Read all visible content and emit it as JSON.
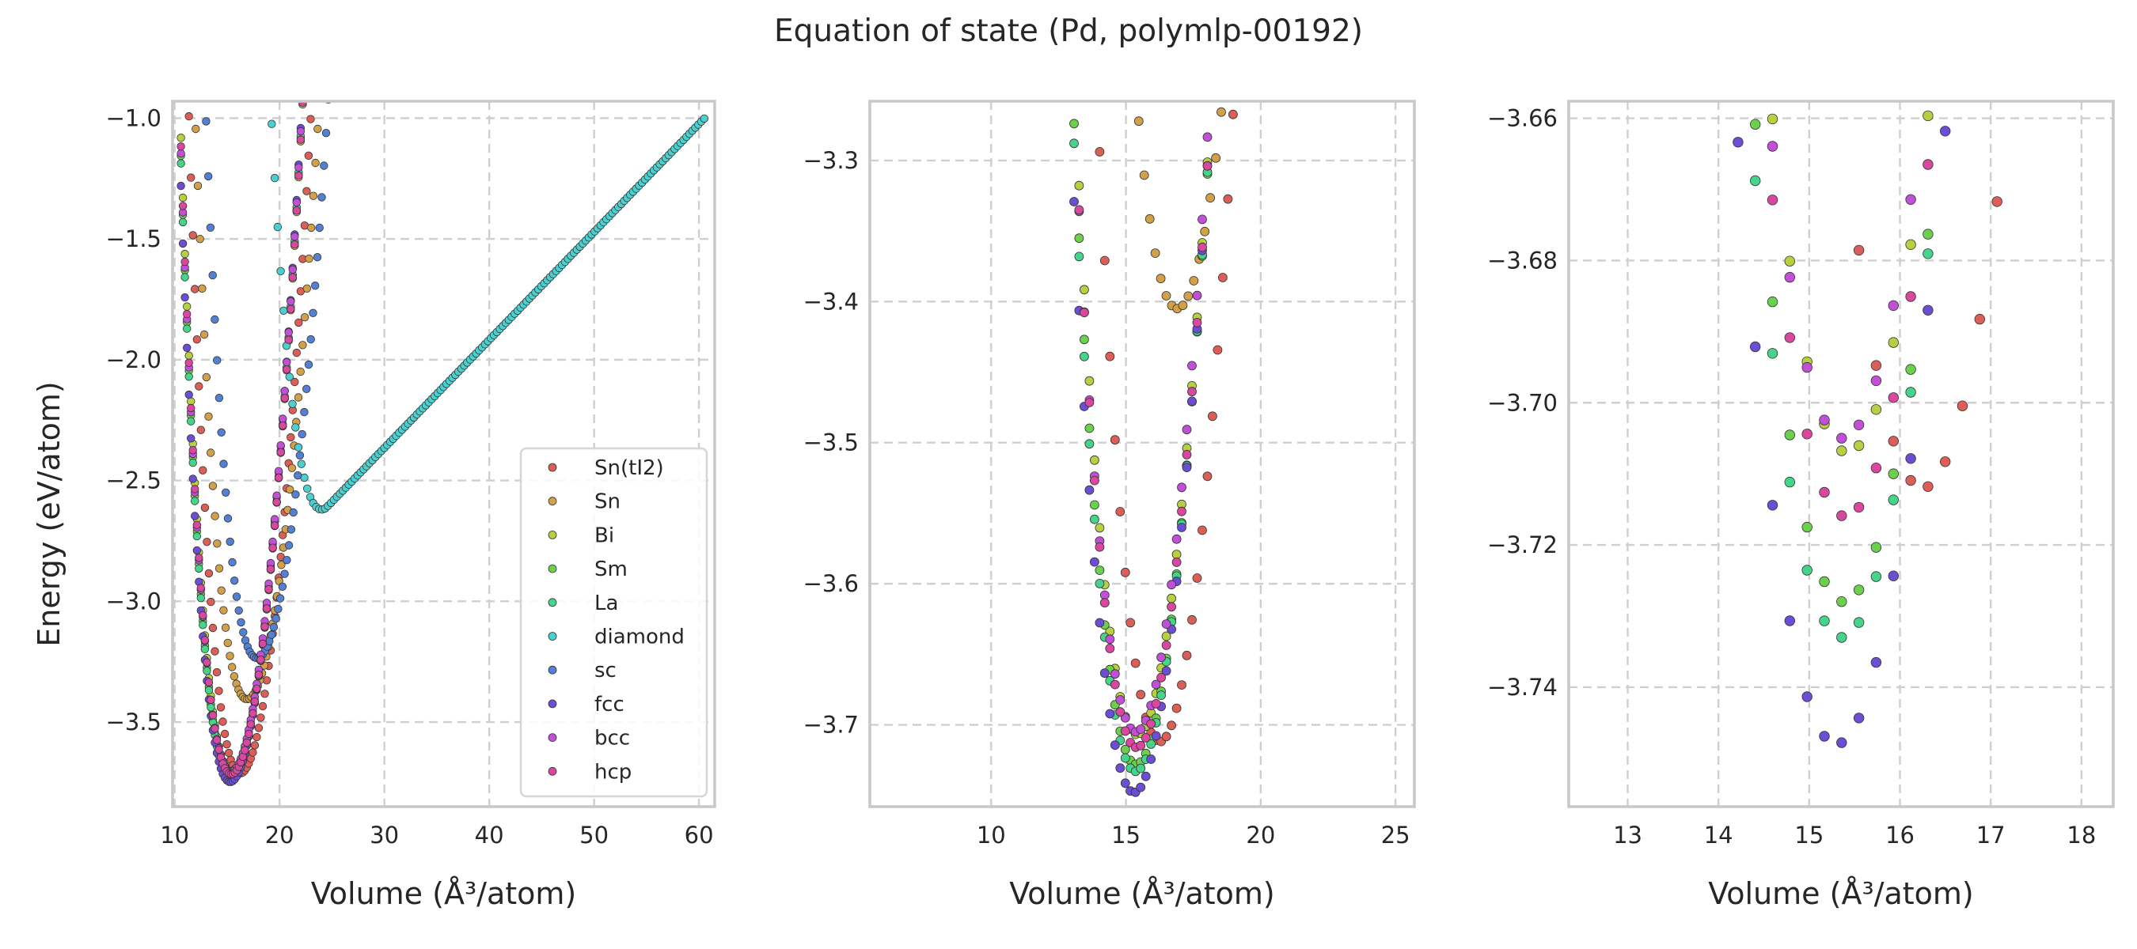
{
  "chart_data": {
    "type": "scatter",
    "title": "Equation of state (Pd, polymlp-00192)",
    "ylabel": "Energy (eV/atom)",
    "xlabel": "Volume (Å³/atom)",
    "legend": {
      "placement": "lower-right",
      "panel": 0
    },
    "series": [
      {
        "name": "Sn(tI2)",
        "color": "#db5f57",
        "v0": 16.25,
        "e0": -3.712,
        "curv": 0.06,
        "vmin": 10.6,
        "vmax": 38.0,
        "n": 145,
        "right_slope": 0.0,
        "flat": false
      },
      {
        "name": "Sn",
        "color": "#d3a04a",
        "v0": 16.9,
        "e0": -3.405,
        "curv": 0.052,
        "vmin": 11.6,
        "vmax": 42.0,
        "n": 150,
        "right_slope": 0.0,
        "flat": false
      },
      {
        "name": "Bi",
        "color": "#b6d041",
        "v0": 15.42,
        "e0": -3.707,
        "curv": 0.06,
        "vmin": 10.6,
        "vmax": 38.0,
        "n": 145,
        "right_slope": 0.0,
        "flat": false
      },
      {
        "name": "Sm",
        "color": "#6bd04b",
        "v0": 15.38,
        "e0": -3.728,
        "curv": 0.06,
        "vmin": 10.6,
        "vmax": 38.0,
        "n": 145,
        "right_slope": 0.0,
        "flat": false
      },
      {
        "name": "La",
        "color": "#44d48a",
        "v0": 15.36,
        "e0": -3.733,
        "curv": 0.06,
        "vmin": 10.6,
        "vmax": 38.0,
        "n": 145,
        "right_slope": 0.0,
        "flat": false
      },
      {
        "name": "diamond",
        "color": "#4ccfcf",
        "v0": 24.0,
        "e0": -2.62,
        "curv": 0.038,
        "vmin": 17.0,
        "vmax": 60.5,
        "n": 155,
        "right_slope": 0.0447,
        "flat": true
      },
      {
        "name": "sc",
        "color": "#5480d3",
        "v0": 17.85,
        "e0": -3.235,
        "curv": 0.05,
        "vmin": 13.0,
        "vmax": 44.0,
        "n": 150,
        "right_slope": 0.0,
        "flat": false
      },
      {
        "name": "fcc",
        "color": "#6b4ed3",
        "v0": 15.3,
        "e0": -3.748,
        "curv": 0.06,
        "vmin": 10.6,
        "vmax": 38.0,
        "n": 145,
        "right_slope": 0.0,
        "flat": false
      },
      {
        "name": "bcc",
        "color": "#c24fd8",
        "v0": 15.37,
        "e0": -3.705,
        "curv": 0.06,
        "vmin": 10.6,
        "vmax": 38.0,
        "n": 145,
        "right_slope": 0.0,
        "flat": false
      },
      {
        "name": "hcp",
        "color": "#d9479e",
        "v0": 15.4,
        "e0": -3.716,
        "curv": 0.06,
        "vmin": 10.6,
        "vmax": 38.0,
        "n": 145,
        "right_slope": 0.0,
        "flat": false
      }
    ],
    "panels": [
      {
        "xlim": [
          9.8,
          61.5
        ],
        "ylim": [
          -3.85,
          -0.93
        ],
        "xticks": [
          10,
          20,
          30,
          40,
          50,
          60
        ],
        "yticks": [
          -3.5,
          -3.0,
          -2.5,
          -2.0,
          -1.5,
          -1.0
        ],
        "xticklabels": [
          "10",
          "20",
          "30",
          "40",
          "50",
          "60"
        ],
        "yticklabels": [
          "−3.5",
          "−3.0",
          "−2.5",
          "−2.0",
          "−1.5",
          "−1.0"
        ]
      },
      {
        "xlim": [
          5.5,
          25.7
        ],
        "ylim": [
          -3.758,
          -3.258
        ],
        "xticks": [
          10,
          15,
          20,
          25
        ],
        "yticks": [
          -3.7,
          -3.6,
          -3.5,
          -3.4,
          -3.3
        ],
        "xticklabels": [
          "10",
          "15",
          "20",
          "25"
        ],
        "yticklabels": [
          "−3.7",
          "−3.6",
          "−3.5",
          "−3.4",
          "−3.3"
        ]
      },
      {
        "xlim": [
          12.35,
          18.35
        ],
        "ylim": [
          -3.7568,
          -3.6576
        ],
        "xticks": [
          13,
          14,
          15,
          16,
          17,
          18
        ],
        "yticks": [
          -3.74,
          -3.72,
          -3.7,
          -3.68,
          -3.66
        ],
        "xticklabels": [
          "13",
          "14",
          "15",
          "16",
          "17",
          "18"
        ],
        "yticklabels": [
          "−3.74",
          "−3.72",
          "−3.70",
          "−3.68",
          "−3.66"
        ]
      }
    ]
  }
}
